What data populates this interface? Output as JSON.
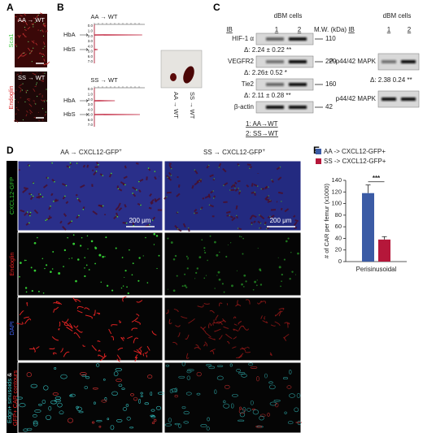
{
  "panels": {
    "A": {
      "label": "A",
      "channels": [
        "Sca1",
        "Endoglin"
      ],
      "images": [
        "AA → WT",
        "SS → WT"
      ]
    },
    "B": {
      "label": "B",
      "plots": [
        {
          "title": "AA → WT",
          "peaks": [
            "HbA",
            "HbS"
          ]
        },
        {
          "title": "SS → WT",
          "peaks": [
            "HbA",
            "HbS"
          ]
        }
      ],
      "ticks": [
        "0.0",
        "1.0",
        "2.0",
        "3.0",
        "4.0",
        "5.0",
        "6.0",
        "7.0"
      ],
      "photo_labels": [
        "AA → WT",
        "SS → WT"
      ]
    },
    "C": {
      "label": "C",
      "left": {
        "ib": "IB",
        "header": "dBM cells",
        "lanes": [
          "1",
          "2"
        ],
        "mw_header": "M.W. (kDa)",
        "rows": [
          {
            "protein": "HIF-1 α",
            "mw": 110,
            "delta": "Δ: 2.24 ± 0.22 **"
          },
          {
            "protein": "VEGFR2",
            "mw": 220,
            "delta": "Δ: 2.26± 0.52 *"
          },
          {
            "protein": "Tie2",
            "mw": 160,
            "delta": "Δ: 2.11 ± 0.28 **"
          },
          {
            "protein": "β-actin",
            "mw": 42
          }
        ],
        "legend": [
          "1: AA→WT",
          "2: SS→WT"
        ]
      },
      "right": {
        "ib": "IB",
        "header": "dBM cells",
        "lanes": [
          "1",
          "2"
        ],
        "rows": [
          {
            "protein": "P-p44/42 MAPK",
            "delta": "Δ: 2.38 0.24 **"
          },
          {
            "protein": "p44/42 MAPK"
          }
        ]
      }
    },
    "D": {
      "label": "D",
      "columns": [
        {
          "text": "AA → CXCL12-GFP",
          "sup": "+"
        },
        {
          "text": "SS → CXCL12-GFP",
          "sup": "+"
        }
      ],
      "rows": [
        "CXCL12-GFP",
        "Endoglin",
        "DAPI"
      ],
      "contours": [
        "Edgn+ sinusoids",
        "&",
        "GFP+ CAR contours"
      ],
      "scale_bar": "200 μm"
    },
    "E": {
      "label": "E",
      "type": "bar",
      "ylabel": "# of CAR per femur (x1000)",
      "categories": [
        "Perisinusoidal"
      ],
      "series": [
        {
          "name": "AA -> CXCL12-GFP+",
          "color": "#3b5ba5",
          "values": [
            118
          ],
          "errors": [
            14
          ]
        },
        {
          "name": "SS -> CXCL12-GFP+",
          "color": "#b5173a",
          "values": [
            38
          ],
          "errors": [
            5
          ]
        }
      ],
      "ylim": [
        0,
        140
      ],
      "yticks": [
        0,
        20,
        40,
        60,
        80,
        100,
        120,
        140
      ],
      "significance": "***"
    }
  }
}
